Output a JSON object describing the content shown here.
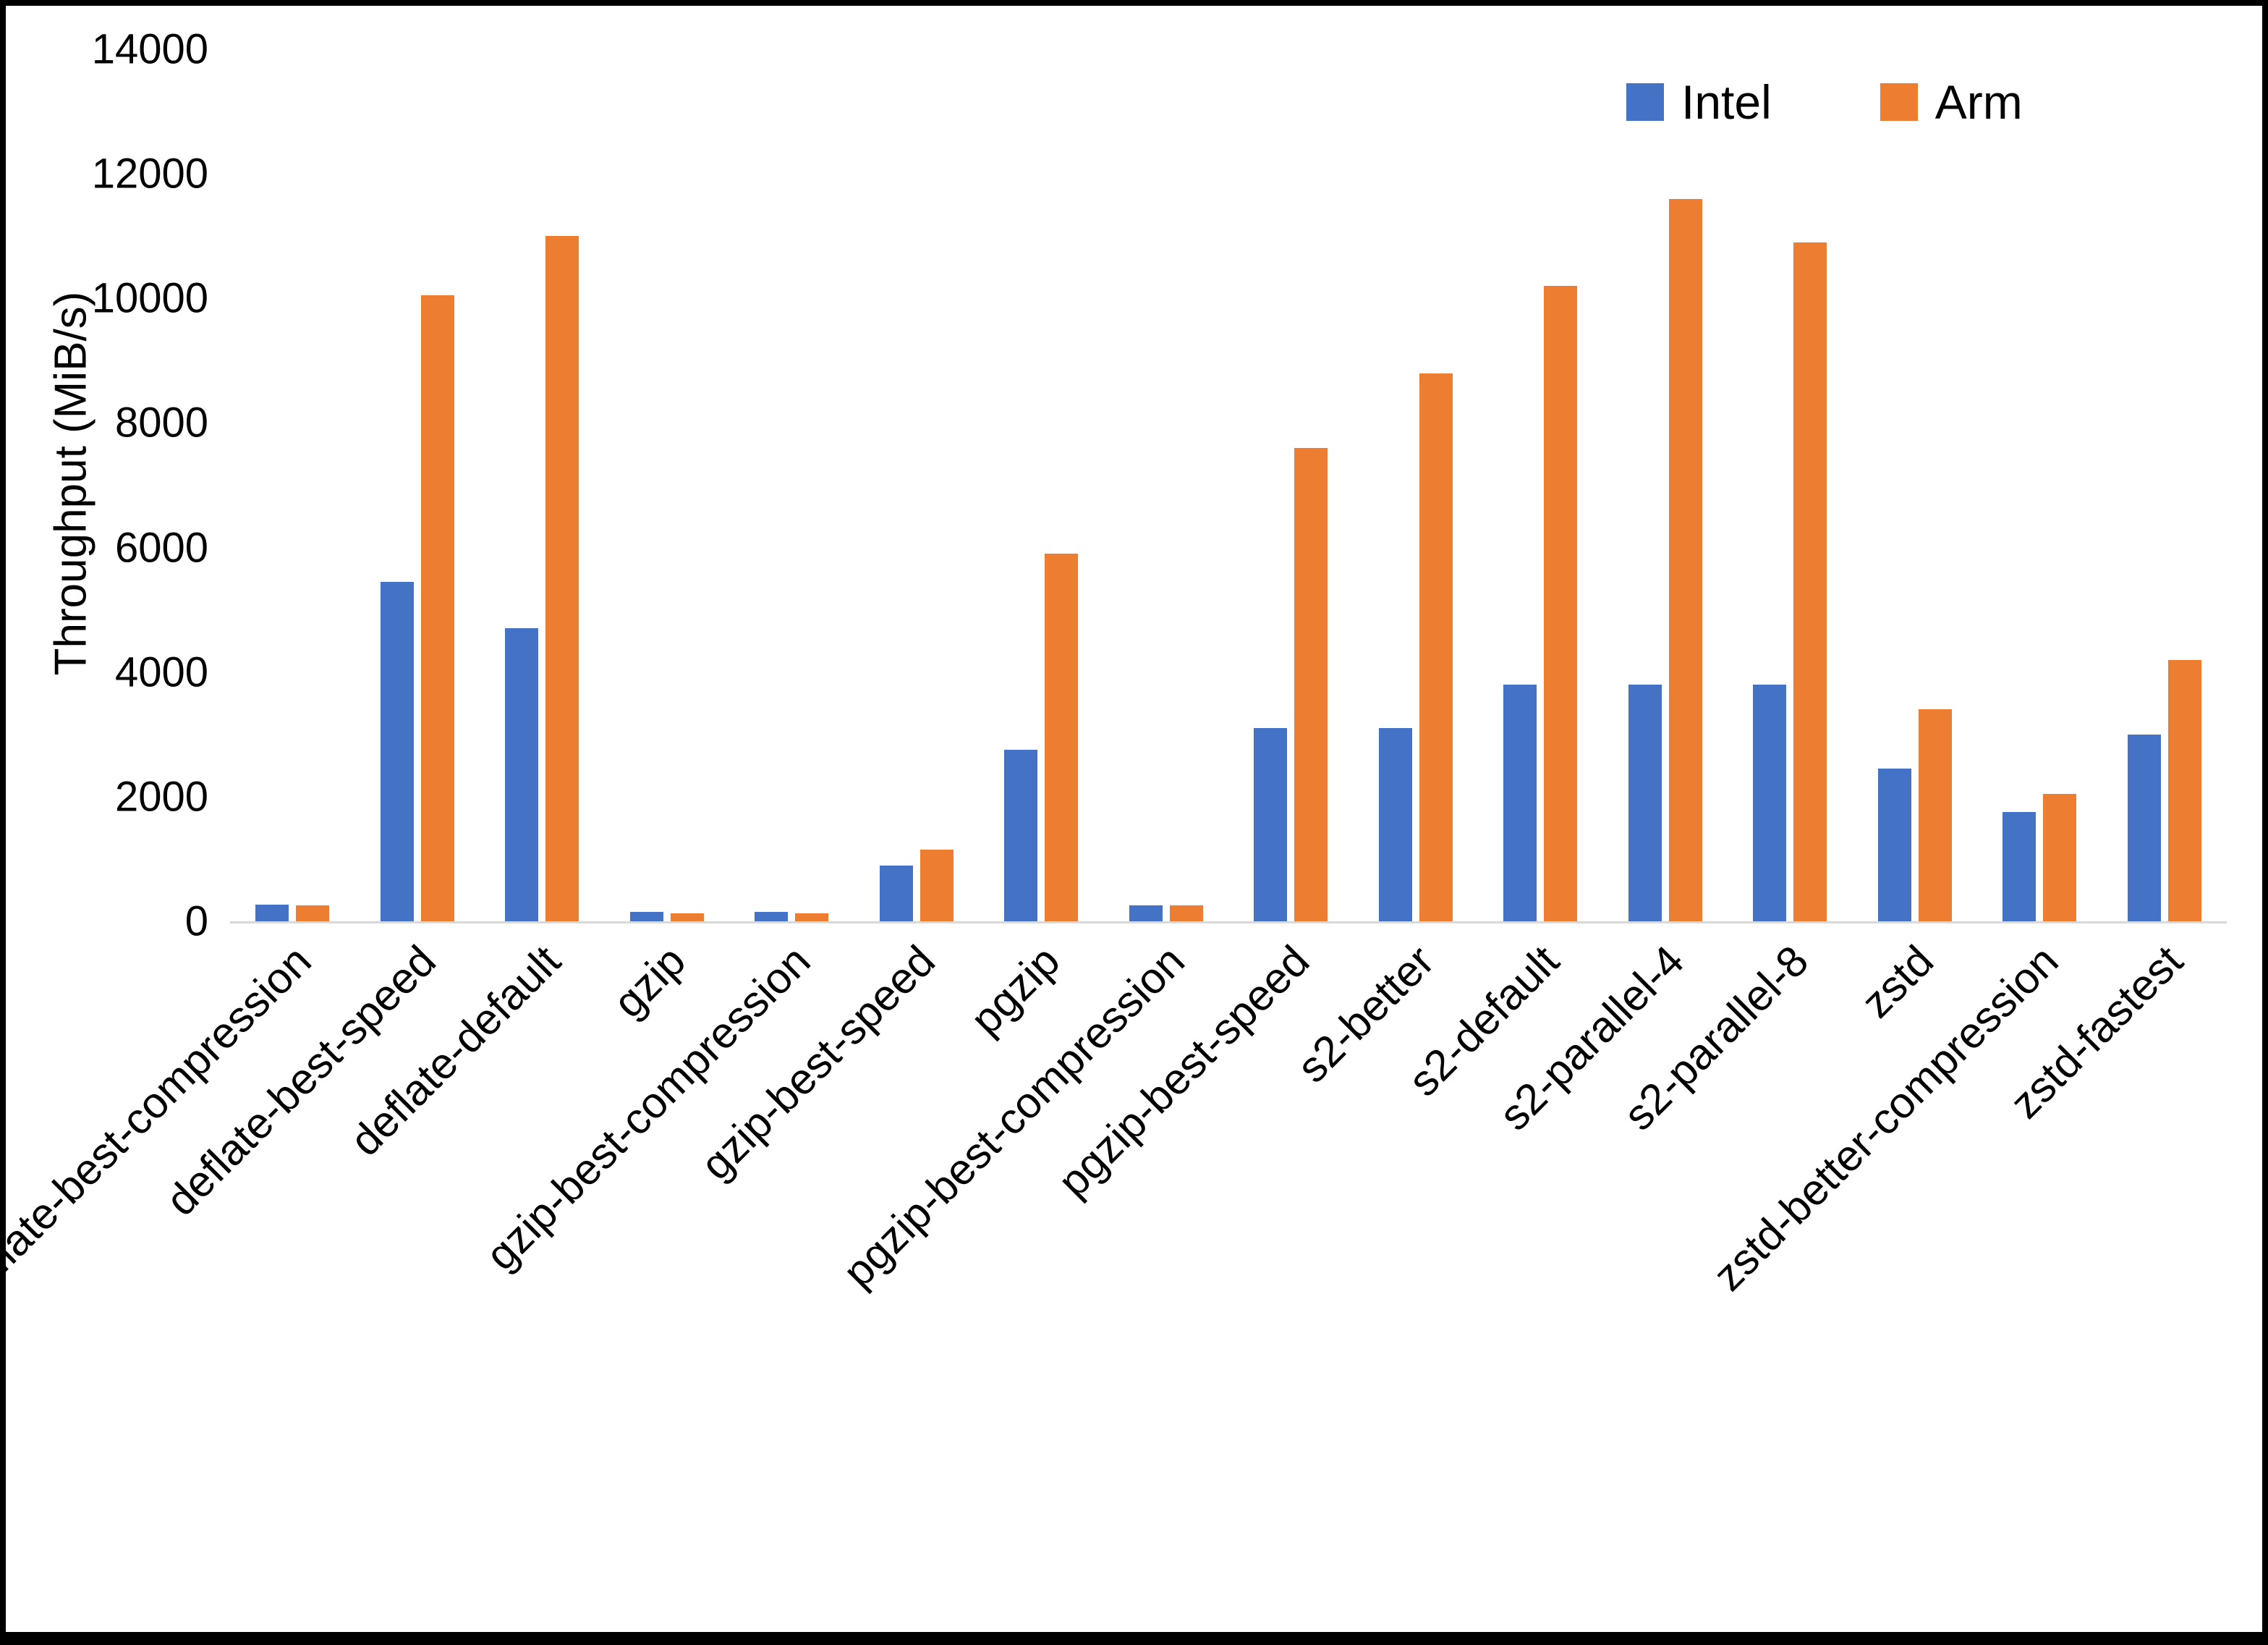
{
  "chart_data": {
    "type": "bar",
    "title": "",
    "xlabel": "",
    "ylabel": "Throughput (MiB/s)",
    "ylim": [
      0,
      14000
    ],
    "yticks": [
      0,
      2000,
      4000,
      6000,
      8000,
      10000,
      12000,
      14000
    ],
    "grid": false,
    "legend_position": "top-right",
    "categories": [
      "deflate-best-compression",
      "deflate-best-speed",
      "deflate-default",
      "gzip",
      "gzip-best-compression",
      "gzip-best-speed",
      "pgzip",
      "pgzip-best-compression",
      "pgzip-best-speed",
      "s2-better",
      "s2-default",
      "s2-parallel-4",
      "s2-parallel-8",
      "zstd",
      "zstd-better-compression",
      "zstd-fastest"
    ],
    "series": [
      {
        "name": "Intel",
        "color": "#4472C4",
        "values": [
          270,
          5450,
          4700,
          150,
          150,
          900,
          2750,
          260,
          3100,
          3100,
          3800,
          3800,
          3800,
          2450,
          1750,
          3000
        ]
      },
      {
        "name": "Arm",
        "color": "#ED7D31",
        "values": [
          260,
          10050,
          11000,
          130,
          130,
          1150,
          5900,
          260,
          7600,
          8800,
          10200,
          11600,
          10900,
          3400,
          2050,
          4200
        ]
      }
    ]
  }
}
